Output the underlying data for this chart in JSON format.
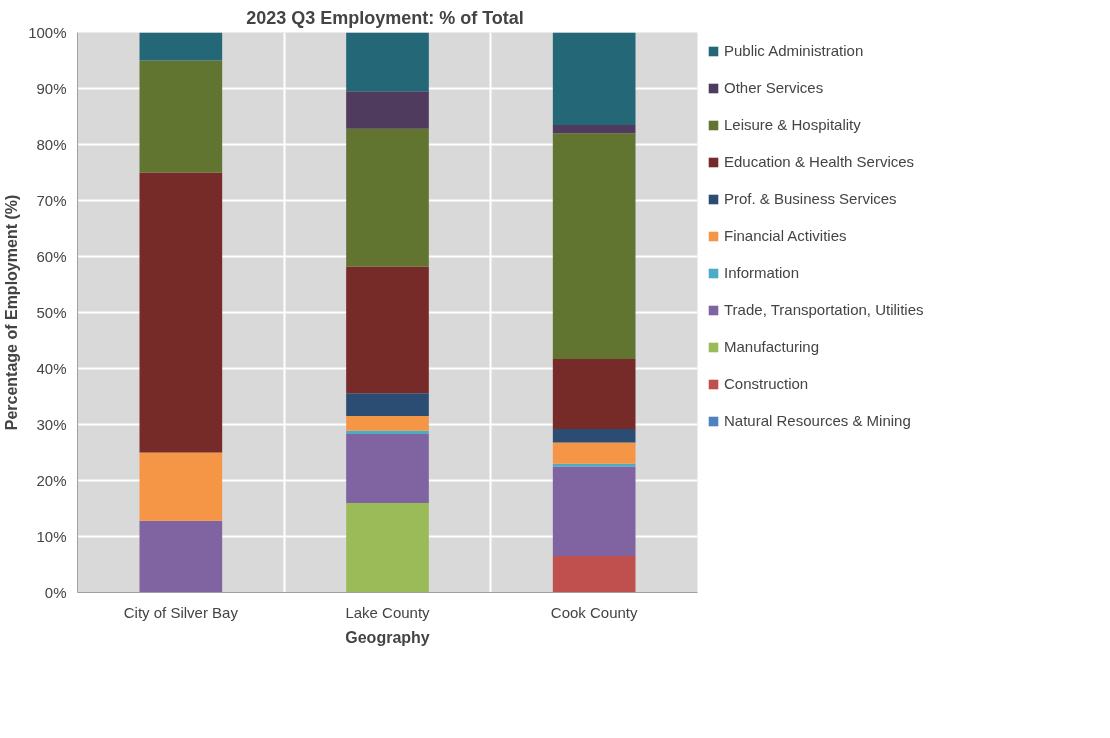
{
  "chart_data": {
    "type": "bar",
    "stacked": true,
    "title": "2023 Q3 Employment:  % of Total",
    "xlabel": "Geography",
    "ylabel": "Percentage of Employment (%)",
    "categories": [
      "City of Silver Bay",
      "Lake County",
      "Cook County"
    ],
    "ylim": [
      0,
      100
    ],
    "yticks": [
      {
        "value": 0,
        "label": "0%"
      },
      {
        "value": 10,
        "label": "10%"
      },
      {
        "value": 20,
        "label": "20%"
      },
      {
        "value": 30,
        "label": "30%"
      },
      {
        "value": 40,
        "label": "40%"
      },
      {
        "value": 50,
        "label": "50%"
      },
      {
        "value": 60,
        "label": "60%"
      },
      {
        "value": 70,
        "label": "70%"
      },
      {
        "value": 80,
        "label": "80%"
      },
      {
        "value": 90,
        "label": "90%"
      },
      {
        "value": 100,
        "label": "100%"
      }
    ],
    "grid": true,
    "legend": "right",
    "series": [
      {
        "name": "Natural Resources & Mining",
        "color": "#4f81bd",
        "values": [
          0,
          0,
          0
        ]
      },
      {
        "name": "Construction",
        "color": "#c0504d",
        "values": [
          0,
          0,
          6.5
        ]
      },
      {
        "name": "Manufacturing",
        "color": "#9bbb59",
        "values": [
          0,
          16,
          0
        ]
      },
      {
        "name": "Trade, Transportation, Utilities",
        "color": "#8064a2",
        "values": [
          12.8,
          12.3,
          16
        ]
      },
      {
        "name": "Information",
        "color": "#4bacc6",
        "values": [
          0,
          0.6,
          0.5
        ]
      },
      {
        "name": "Financial Activities",
        "color": "#f59647",
        "values": [
          12.2,
          2.6,
          3.8
        ]
      },
      {
        "name": "Prof. & Business Services",
        "color": "#2b4c73",
        "values": [
          0,
          4.1,
          2.4
        ]
      },
      {
        "name": "Education & Health Services",
        "color": "#772b29",
        "values": [
          50,
          22.6,
          12.5
        ]
      },
      {
        "name": "Leisure & Hospitality",
        "color": "#617530",
        "values": [
          20,
          24.6,
          40.3
        ]
      },
      {
        "name": "Other Services",
        "color": "#4e3b5e",
        "values": [
          0,
          6.7,
          1.5
        ]
      },
      {
        "name": "Public Administration",
        "color": "#246878",
        "values": [
          5,
          10.5,
          16.5
        ]
      }
    ]
  }
}
